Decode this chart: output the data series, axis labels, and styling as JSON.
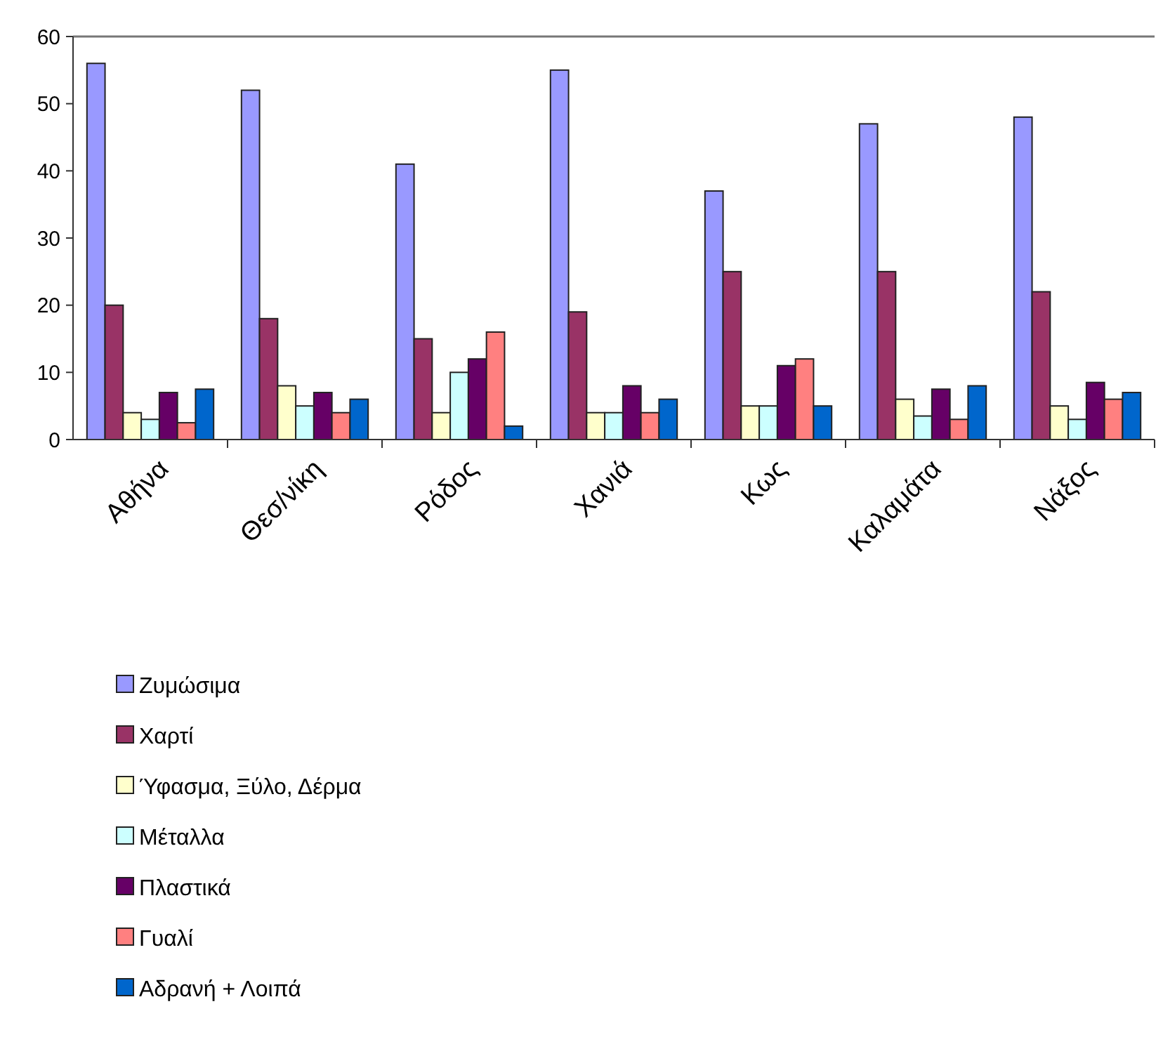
{
  "chart_data": {
    "type": "bar",
    "categories": [
      "Αθήνα",
      "Θεσ/νίκη",
      "Ρόδος",
      "Χανιά",
      "Κως",
      "Καλαμάτα",
      "Νάξος"
    ],
    "series": [
      {
        "name": "Ζυμώσιμα",
        "color": "#9999ff",
        "values": [
          56,
          52,
          41,
          55,
          37,
          47,
          48
        ]
      },
      {
        "name": "Χαρτί",
        "color": "#993366",
        "values": [
          20,
          18,
          15,
          19,
          25,
          25,
          22
        ]
      },
      {
        "name": "Ύφασμα, Ξύλο, Δέρμα",
        "color": "#ffffcc",
        "values": [
          4,
          8,
          4,
          4,
          5,
          6,
          5
        ]
      },
      {
        "name": "Μέταλλα",
        "color": "#ccffff",
        "values": [
          3,
          5,
          10,
          4,
          5,
          3.5,
          3
        ]
      },
      {
        "name": "Πλαστικά",
        "color": "#660066",
        "values": [
          7,
          7,
          12,
          8,
          11,
          7.5,
          8.5
        ]
      },
      {
        "name": "Γυαλί",
        "color": "#ff8080",
        "values": [
          2.5,
          4,
          16,
          4,
          12,
          3,
          6
        ]
      },
      {
        "name": "Αδρανή + Λοιπά",
        "color": "#0066cc",
        "values": [
          7.5,
          6,
          2,
          6,
          5,
          8,
          7
        ]
      }
    ],
    "ylim": [
      0,
      60
    ],
    "yticks": [
      0,
      10,
      20,
      30,
      40,
      50,
      60
    ],
    "grid": false,
    "legend": "bottom left"
  }
}
